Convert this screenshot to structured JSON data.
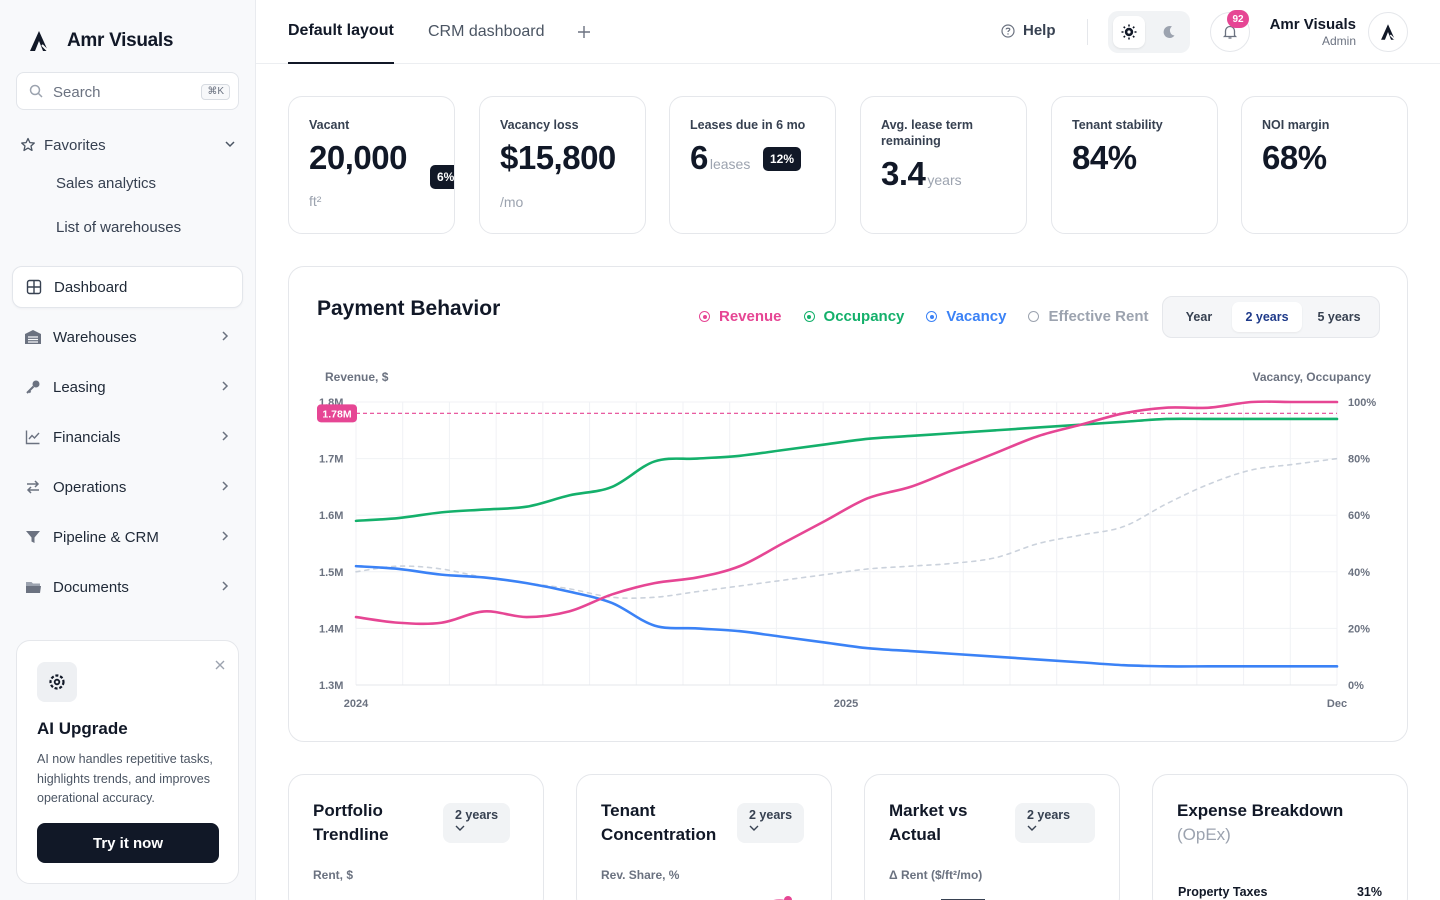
{
  "brand": {
    "name": "Amr Visuals"
  },
  "search": {
    "placeholder": "Search",
    "shortcut": "⌘K"
  },
  "favorites": {
    "label": "Favorites",
    "items": [
      "Sales analytics",
      "List of warehouses"
    ]
  },
  "nav": [
    {
      "label": "Dashboard",
      "icon": "grid-icon",
      "active": true
    },
    {
      "label": "Warehouses",
      "icon": "warehouse-icon"
    },
    {
      "label": "Leasing",
      "icon": "key-icon"
    },
    {
      "label": "Financials",
      "icon": "line-chart-icon"
    },
    {
      "label": "Operations",
      "icon": "arrows-exchange-icon"
    },
    {
      "label": "Pipeline & CRM",
      "icon": "funnel-icon"
    },
    {
      "label": "Documents",
      "icon": "folder-icon"
    }
  ],
  "promo": {
    "title": "AI Upgrade",
    "text": "AI now handles repetitive tasks, highlights trends, and improves operational accuracy.",
    "button": "Try it now"
  },
  "header": {
    "tabs": [
      "Default layout",
      "CRM dashboard"
    ],
    "help": "Help",
    "notifications": "92",
    "user_name": "Amr Visuals",
    "user_role": "Admin"
  },
  "kpis": [
    {
      "title": "Vacant",
      "value": "20,000",
      "unit": "ft²",
      "badge": "6%"
    },
    {
      "title": "Vacancy loss",
      "value": "$15,800",
      "unit": "/mo"
    },
    {
      "title": "Leases due in 6 mo",
      "value": "6",
      "inline": "leases",
      "badge": "12%"
    },
    {
      "title": "Avg. lease term remaining",
      "value": "3.4",
      "inline": "years"
    },
    {
      "title": "Tenant stability",
      "value": "84%"
    },
    {
      "title": "NOI margin",
      "value": "68%"
    }
  ],
  "payment": {
    "title": "Payment Behavior",
    "legend": [
      "Revenue",
      "Occupancy",
      "Vacancy",
      "Effective Rent"
    ],
    "ranges": [
      "Year",
      "2 years",
      "5 years"
    ],
    "selected_range": "2 years"
  },
  "chart_data": {
    "type": "line",
    "ylabel_left": "Revenue, $",
    "ylabel_right": "Vacancy, Occupancy",
    "left_ticks": [
      "1.8M",
      "1.7M",
      "1.6M",
      "1.5M",
      "1.4M",
      "1.3M"
    ],
    "right_ticks": [
      "100%",
      "80%",
      "60%",
      "40%",
      "20%",
      "0%"
    ],
    "x_ticks": [
      "2024",
      "2025",
      "Dec"
    ],
    "y_left_range": [
      1.3,
      1.8
    ],
    "y_right_range": [
      0,
      100
    ],
    "reference_label": "1.78M",
    "reference_value": 1.78,
    "grid": true,
    "x": [
      0,
      1,
      2,
      3,
      4,
      5,
      6,
      7,
      8,
      9,
      10,
      11,
      12,
      13,
      14,
      15,
      16,
      17,
      18,
      19,
      20,
      21,
      22,
      23
    ],
    "series": [
      {
        "name": "Revenue",
        "color": "#e64694",
        "axis": "left",
        "values": [
          1.42,
          1.41,
          1.41,
          1.43,
          1.42,
          1.43,
          1.46,
          1.48,
          1.49,
          1.51,
          1.55,
          1.59,
          1.63,
          1.65,
          1.68,
          1.71,
          1.74,
          1.76,
          1.78,
          1.79,
          1.79,
          1.8,
          1.8,
          1.8
        ]
      },
      {
        "name": "Occupancy",
        "color": "#14b06b",
        "axis": "left",
        "values": [
          1.59,
          1.595,
          1.605,
          1.61,
          1.615,
          1.635,
          1.65,
          1.695,
          1.7,
          1.705,
          1.715,
          1.725,
          1.735,
          1.74,
          1.745,
          1.75,
          1.755,
          1.76,
          1.765,
          1.77,
          1.77,
          1.77,
          1.77,
          1.77
        ]
      },
      {
        "name": "Vacancy",
        "color": "#3b82f6",
        "axis": "left",
        "values": [
          1.51,
          1.505,
          1.495,
          1.49,
          1.48,
          1.465,
          1.445,
          1.405,
          1.4,
          1.395,
          1.385,
          1.375,
          1.365,
          1.36,
          1.355,
          1.35,
          1.345,
          1.34,
          1.335,
          1.333,
          1.333,
          1.333,
          1.333,
          1.333
        ]
      },
      {
        "name": "Effective Rent",
        "color": "#cbd2dc",
        "axis": "left",
        "dashed": true,
        "values": [
          1.5,
          1.51,
          1.505,
          1.49,
          1.48,
          1.47,
          1.455,
          1.455,
          1.465,
          1.475,
          1.485,
          1.495,
          1.505,
          1.51,
          1.515,
          1.525,
          1.55,
          1.565,
          1.58,
          1.62,
          1.655,
          1.68,
          1.69,
          1.7
        ]
      }
    ]
  },
  "bottom_cards": [
    {
      "title": "Portfolio Trendline",
      "select": "2 years",
      "axis": "Rent, $"
    },
    {
      "title": "Tenant Concentration",
      "select": "2 years",
      "axis": "Rev. Share, %"
    },
    {
      "title": "Market vs Actual",
      "select": "2 years",
      "axis": "Δ Rent ($/ft²/mo)"
    },
    {
      "title": "Expense Breakdown",
      "subtitle": "(OpEx)",
      "row_label": "Property Taxes",
      "row_value": "31%"
    }
  ],
  "colors": {
    "revenue": "#e64694",
    "occupancy": "#14b06b",
    "vacancy": "#3b82f6",
    "effective_rent": "#9ca3af",
    "dark": "#111827"
  }
}
